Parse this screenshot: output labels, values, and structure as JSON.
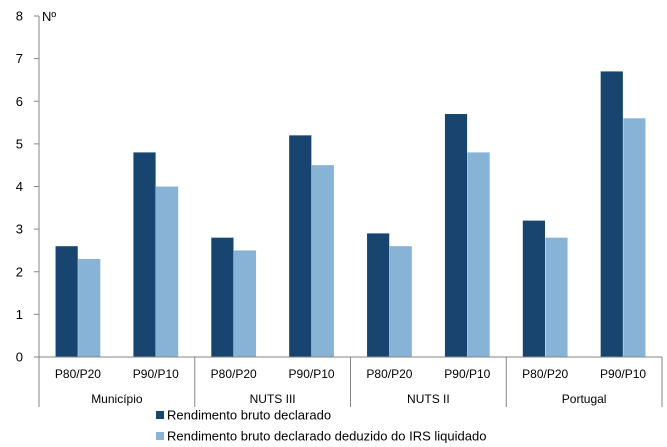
{
  "chart_data": {
    "type": "bar",
    "unit_label": "Nº",
    "groups": [
      "Município",
      "NUTS III",
      "NUTS II",
      "Portugal"
    ],
    "categories": [
      "P80/P20",
      "P90/P10"
    ],
    "series": [
      {
        "name": "Rendimento bruto declarado",
        "color": "#17456f",
        "values": [
          [
            2.6,
            4.8
          ],
          [
            2.8,
            5.2
          ],
          [
            2.9,
            5.7
          ],
          [
            3.2,
            6.7
          ]
        ]
      },
      {
        "name": "Rendimento bruto declarado deduzido do IRS liquidado",
        "color": "#87b4d6",
        "values": [
          [
            2.3,
            4.0
          ],
          [
            2.5,
            4.5
          ],
          [
            2.6,
            4.8
          ],
          [
            2.8,
            5.6
          ]
        ]
      }
    ],
    "ylim": [
      0,
      8
    ],
    "yticks": [
      0,
      1,
      2,
      3,
      4,
      5,
      6,
      7,
      8
    ],
    "grid": false,
    "legend_position": "bottom"
  }
}
